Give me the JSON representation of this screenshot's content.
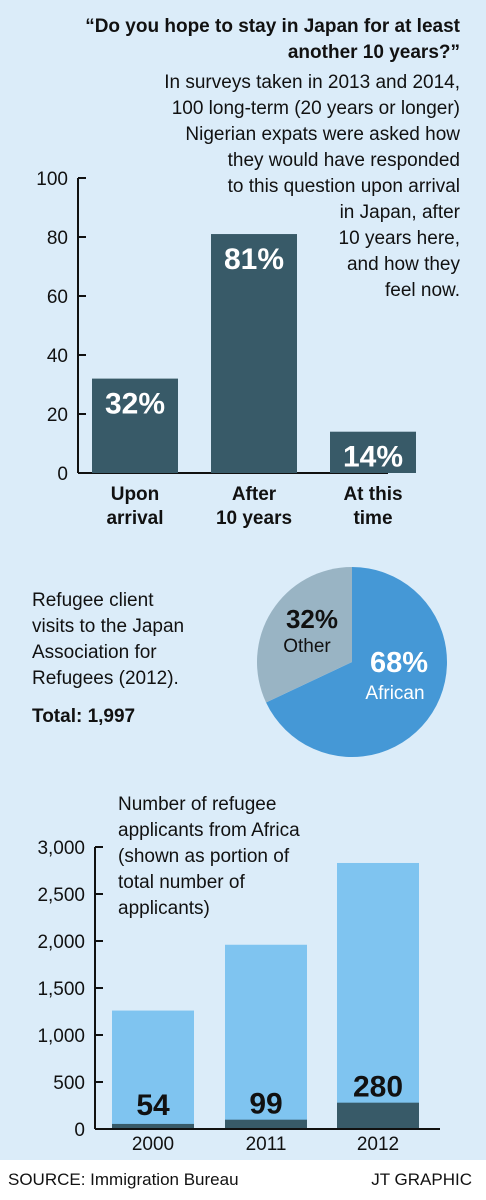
{
  "colors": {
    "background": "#dbecf9",
    "bar_dark": "#385a68",
    "pie_african": "#4598d6",
    "pie_other": "#99b4c4",
    "bar_total": "#7fc4f0",
    "text": "#111111"
  },
  "survey": {
    "question": "“Do you hope to stay in Japan for at least another 10 years?”",
    "description": "In surveys taken in 2013 and 2014,\n100 long-term (20 years or longer)\nNigerian expats were asked how\nthey would have responded\nto this question upon arrival\nin Japan, after\n10 years here,\nand how they\nfeel now."
  },
  "pie_section": {
    "description": "Refugee client\nvisits to the Japan\nAssociation for\nRefugees (2012).",
    "total": "Total: 1,997"
  },
  "applicants_section": {
    "description": "Number of refugee\napplicants from Africa\n(shown as portion of\ntotal number of\napplicants)"
  },
  "footer": {
    "source": "SOURCE: Immigration Bureau",
    "credit": "JT GRAPHIC"
  },
  "chart_data": [
    {
      "type": "bar",
      "categories": [
        "Upon\narrival",
        "After\n10 years",
        "At this\ntime"
      ],
      "values": [
        32,
        81,
        14
      ],
      "value_labels": [
        "32%",
        "81%",
        "14%"
      ],
      "ylim": [
        0,
        100
      ],
      "yticks": [
        "0",
        "20",
        "40",
        "60",
        "80",
        "100"
      ],
      "ytick_values": [
        0,
        20,
        40,
        60,
        80,
        100
      ]
    },
    {
      "type": "pie",
      "slices": [
        {
          "label": "African",
          "value": 68,
          "value_label": "68%"
        },
        {
          "label": "Other",
          "value": 32,
          "value_label": "32%"
        }
      ]
    },
    {
      "type": "bar",
      "categories": [
        "2000",
        "2011",
        "2012"
      ],
      "series": [
        {
          "values": [
            1260,
            1960,
            2830
          ]
        },
        {
          "values": [
            54,
            99,
            280
          ]
        }
      ],
      "value_labels": [
        "54",
        "99",
        "280"
      ],
      "ylim": [
        0,
        3000
      ],
      "yticks": [
        "0",
        "500",
        "1,000",
        "1,500",
        "2,000",
        "2,500",
        "3,000"
      ],
      "ytick_values": [
        0,
        500,
        1000,
        1500,
        2000,
        2500,
        3000
      ]
    }
  ]
}
